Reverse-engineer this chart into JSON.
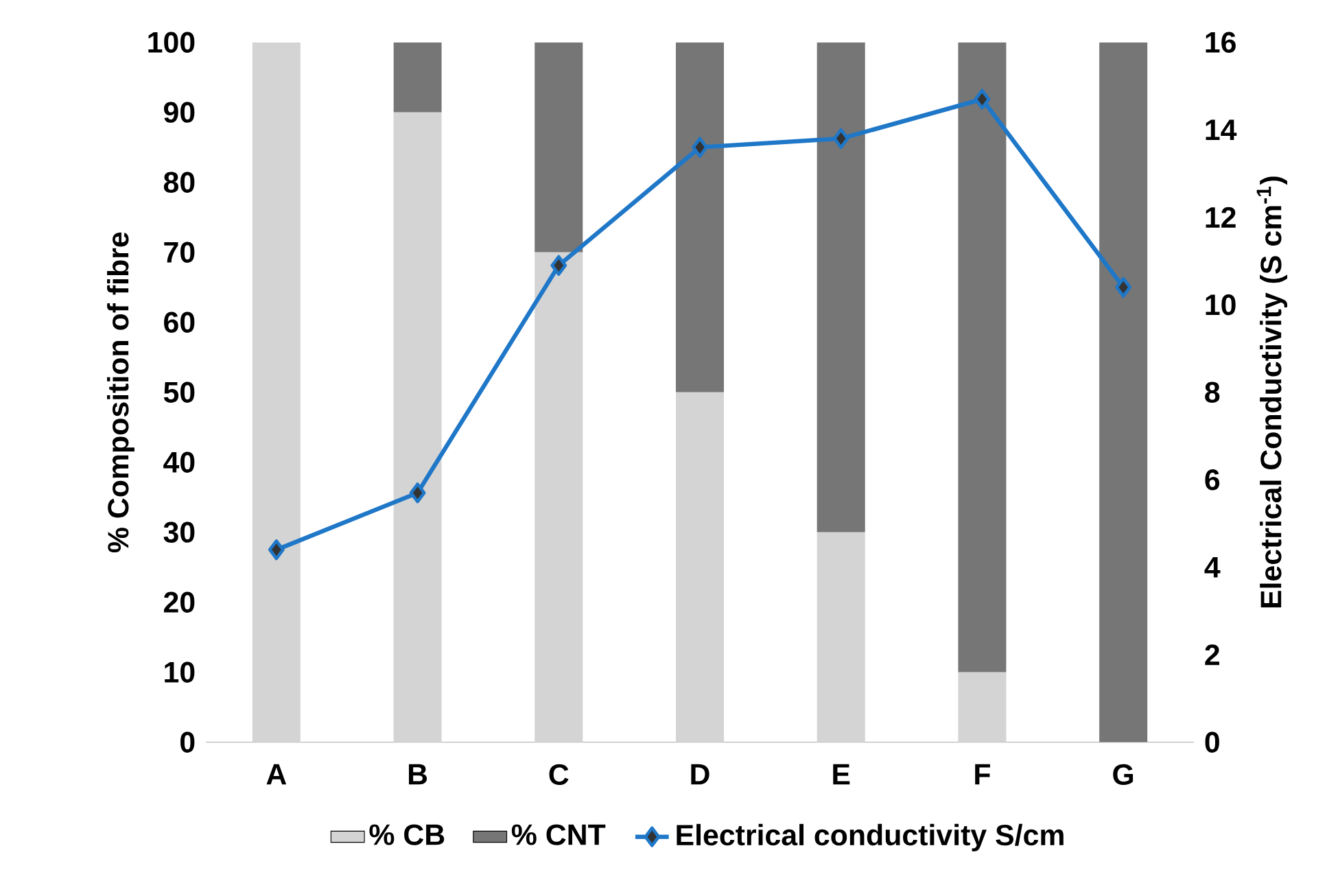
{
  "chart_data": {
    "type": "bar",
    "stacked": true,
    "ylabel": "% Composition of fibre",
    "y2label": "Electrical Conductivity (S cm$^{-1}$)",
    "categories": [
      "A",
      "B",
      "C",
      "D",
      "E",
      "F",
      "G"
    ],
    "series": [
      {
        "name": "% CB",
        "color": "#d4d4d4",
        "values": [
          100,
          90,
          70,
          50,
          30,
          10,
          0
        ]
      },
      {
        "name": "% CNT",
        "color": "#767676",
        "values": [
          0,
          10,
          30,
          50,
          70,
          90,
          100
        ]
      },
      {
        "name": "Electrical conductivity S/cm",
        "type": "line",
        "axis": "y2",
        "color": "#1f77c8",
        "marker": "diamond",
        "line_style": "solid",
        "values": [
          4.4,
          5.7,
          10.9,
          13.6,
          13.8,
          14.7,
          10.4
        ]
      }
    ],
    "ylim": [
      0,
      100
    ],
    "yticks": [
      0,
      10,
      20,
      30,
      40,
      50,
      60,
      70,
      80,
      90,
      100
    ],
    "y2lim": [
      0,
      16
    ],
    "y2ticks": [
      0,
      2,
      4,
      6,
      8,
      10,
      12,
      14,
      16
    ],
    "grid": false,
    "legend": "bottom"
  }
}
